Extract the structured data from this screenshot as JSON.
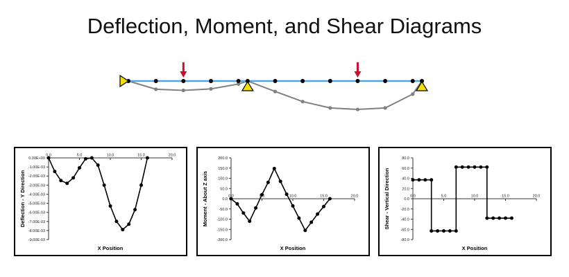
{
  "title": "Deflection, Moment, and Shear Diagrams",
  "colors": {
    "beam": "#4aa8e6",
    "load_arrow": "#c8102e",
    "support": "#f5e000",
    "deflected_shape": "#808080",
    "node": "#000000"
  },
  "beam": {
    "span": [
      0,
      16
    ],
    "supports_at": [
      0,
      6.5,
      16
    ],
    "node_positions": [
      0,
      1.5,
      3,
      4.5,
      6,
      6.5,
      8,
      9.5,
      11,
      12.5,
      14,
      15.5,
      16
    ],
    "load_positions": [
      3,
      12.5
    ],
    "deflected_shape": {
      "x": [
        0,
        1.5,
        3,
        4.5,
        6,
        6.5,
        8,
        9.5,
        11,
        12.5,
        14,
        15.5,
        16
      ],
      "y": [
        0,
        -0.0022,
        -0.0025,
        -0.0021,
        -0.0008,
        0,
        -0.0028,
        -0.0055,
        -0.0072,
        -0.0076,
        -0.0072,
        -0.0035,
        0
      ]
    }
  },
  "chart_data": [
    {
      "type": "line",
      "title": "",
      "xlabel": "X Position",
      "ylabel": "Deflection - Y Direction",
      "xlim": [
        0,
        20
      ],
      "ylim": [
        -0.009,
        0
      ],
      "xticks": [
        "0.0",
        "5.0",
        "10.0",
        "15.0",
        "20.0"
      ],
      "xtick_values": [
        0,
        5,
        10,
        15,
        20
      ],
      "yticks": [
        "0.00E+00",
        "-1.00E-03",
        "-2.00E-03",
        "-3.00E-03",
        "-4.00E-03",
        "-5.00E-03",
        "-6.00E-03",
        "-7.00E-03",
        "-8.00E-03",
        "-9.00E-03"
      ],
      "ytick_values": [
        0,
        -0.001,
        -0.002,
        -0.003,
        -0.004,
        -0.005,
        -0.006,
        -0.007,
        -0.008,
        -0.009
      ],
      "grid": false,
      "series": [
        {
          "x": [
            0,
            1,
            2,
            3,
            4,
            5,
            6,
            7,
            8,
            9,
            10,
            11,
            12,
            13,
            14,
            15,
            16
          ],
          "values": [
            0,
            -0.0015,
            -0.0025,
            -0.0028,
            -0.0022,
            -0.0011,
            -0.0001,
            0,
            -0.0008,
            -0.003,
            -0.0053,
            -0.007,
            -0.0079,
            -0.0073,
            -0.0057,
            -0.003,
            0
          ]
        }
      ]
    },
    {
      "type": "line",
      "title": "",
      "xlabel": "X Position",
      "ylabel": "Moment - About Z axis",
      "xlim": [
        0,
        20
      ],
      "ylim": [
        -200,
        200
      ],
      "xticks": [
        "0.0",
        "5.0",
        "10.0",
        "15.0",
        "20.0"
      ],
      "xtick_values": [
        0,
        5,
        10,
        15,
        20
      ],
      "yticks": [
        "200.0",
        "150.0",
        "100.0",
        "50.0",
        "0.0",
        "-50.0",
        "-100.0",
        "-150.0",
        "-200.0"
      ],
      "ytick_values": [
        200,
        150,
        100,
        50,
        0,
        -50,
        -100,
        -150,
        -200
      ],
      "grid": false,
      "series": [
        {
          "x": [
            0,
            1,
            2,
            3,
            4,
            5,
            6,
            7,
            8,
            9,
            10,
            11,
            12,
            13,
            14,
            15,
            16
          ],
          "values": [
            0,
            -25,
            -70,
            -110,
            -45,
            20,
            80,
            148,
            85,
            22,
            -35,
            -95,
            -155,
            -115,
            -75,
            -38,
            0
          ]
        }
      ]
    },
    {
      "type": "line",
      "title": "",
      "xlabel": "X Position",
      "ylabel": "Shear - Vertical Direction",
      "xlim": [
        0,
        20
      ],
      "ylim": [
        -80,
        80
      ],
      "xticks": [
        "0.0",
        "5.0",
        "10.0",
        "15.0",
        "20.0"
      ],
      "xtick_values": [
        0,
        5,
        10,
        15,
        20
      ],
      "yticks": [
        "80.0",
        "60.0",
        "40.0",
        "20.0",
        "0.0",
        "-20.0",
        "-40.0",
        "-60.0",
        "-80.0"
      ],
      "ytick_values": [
        80,
        60,
        40,
        20,
        0,
        -20,
        -40,
        -60,
        -80
      ],
      "grid": false,
      "series": [
        {
          "x": [
            0,
            1,
            2,
            3,
            3,
            4,
            5,
            6,
            7,
            7,
            8,
            9,
            10,
            11,
            12,
            12,
            13,
            14,
            15,
            16
          ],
          "values": [
            37,
            37,
            37,
            37,
            -63,
            -63,
            -63,
            -63,
            -63,
            62,
            62,
            62,
            62,
            62,
            62,
            -38,
            -38,
            -38,
            -38,
            -38
          ]
        }
      ]
    }
  ]
}
